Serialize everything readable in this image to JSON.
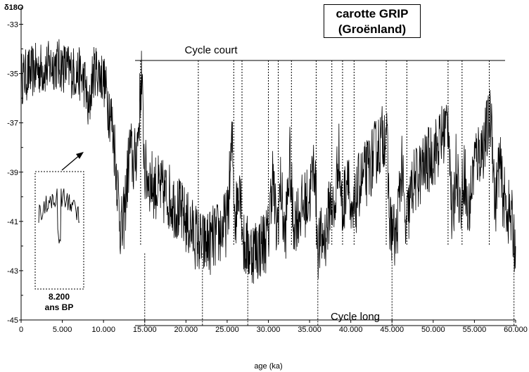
{
  "chart_data": {
    "type": "line",
    "title": "carotte GRIP",
    "subtitle": "(Groënland)",
    "ylabel": "δ18O",
    "xlabel": "age (ka)",
    "xlim": [
      0,
      60000
    ],
    "ylim": [
      -45,
      -32
    ],
    "x_ticks": [
      0,
      5000,
      10000,
      15000,
      20000,
      25000,
      30000,
      35000,
      40000,
      45000,
      50000,
      55000,
      60000
    ],
    "x_tick_labels": [
      "0",
      "5.000",
      "10.000",
      "15.000",
      "20.000",
      "25.000",
      "30.000",
      "35.000",
      "40.000",
      "45.000",
      "50.000",
      "55.000",
      "60.000"
    ],
    "y_ticks": [
      -33,
      -35,
      -37,
      -39,
      -41,
      -43,
      -45
    ],
    "y_tick_labels": [
      "-33",
      "-35",
      "-37",
      "-39",
      "-41",
      "-43",
      "-45"
    ],
    "series": [
      {
        "x": [
          0,
          1000,
          2000,
          3000,
          4000,
          5000,
          6000,
          7000,
          7800,
          8200,
          8600,
          9000,
          10000,
          10800,
          11300,
          11700,
          12000,
          12300,
          12700,
          13200,
          13700,
          14200,
          14600,
          15000,
          16000,
          17000,
          18000,
          19000,
          20000,
          21000,
          22000,
          23000,
          24000,
          25000,
          25600,
          26000,
          26500,
          27000,
          28000,
          29000,
          30000,
          30500,
          31000,
          31500,
          32000,
          32600,
          33000,
          34000,
          35000,
          35600,
          36000,
          37000,
          37600,
          38000,
          38500,
          39000,
          39700,
          40000,
          41000,
          42000,
          43000,
          44000,
          44300,
          44700,
          45500,
          46200,
          46600,
          47500,
          48500,
          49500,
          50500,
          51500,
          51900,
          52300,
          52800,
          53300,
          53800,
          54200,
          55000,
          56000,
          56800,
          57100,
          57500,
          58000,
          58500,
          59000,
          59500,
          60000
        ],
        "y": [
          -35.2,
          -35.0,
          -34.8,
          -34.8,
          -34.6,
          -34.7,
          -34.9,
          -35.0,
          -35.4,
          -36.8,
          -35.2,
          -34.8,
          -35.2,
          -36.5,
          -37.8,
          -39.5,
          -41.0,
          -41.5,
          -40.0,
          -38.0,
          -38.8,
          -37.5,
          -35.0,
          -39.0,
          -39.5,
          -39.8,
          -40.0,
          -40.5,
          -41.0,
          -41.5,
          -42.0,
          -41.8,
          -41.5,
          -41.0,
          -37.8,
          -41.0,
          -39.0,
          -42.0,
          -42.2,
          -42.0,
          -41.6,
          -39.0,
          -41.5,
          -39.5,
          -41.8,
          -38.5,
          -41.0,
          -40.5,
          -40.0,
          -38.5,
          -42.0,
          -41.5,
          -40.0,
          -41.0,
          -38.0,
          -40.8,
          -38.5,
          -41.5,
          -39.5,
          -39.0,
          -38.2,
          -37.5,
          -37.0,
          -41.0,
          -41.8,
          -38.5,
          -41.5,
          -39.5,
          -39.0,
          -38.5,
          -38.0,
          -37.2,
          -36.8,
          -41.5,
          -38.5,
          -40.5,
          -38.8,
          -41.0,
          -38.5,
          -38.0,
          -37.0,
          -36.8,
          -40.5,
          -38.5,
          -40.0,
          -40.5,
          -41.0,
          -42.0
        ]
      }
    ],
    "annotations": {
      "cycle_court": "Cycle court",
      "cycle_long": "Cycle long",
      "inset_label_line1": "8.200",
      "inset_label_line2": "ans BP",
      "short_cycle_ages": [
        14500,
        21500,
        25800,
        26800,
        30000,
        31200,
        32800,
        35800,
        37700,
        39000,
        40400,
        44300,
        46800,
        51800,
        53500,
        56800
      ],
      "long_cycle_ages": [
        15000,
        22000,
        27500,
        36000,
        45000,
        59800
      ]
    }
  }
}
